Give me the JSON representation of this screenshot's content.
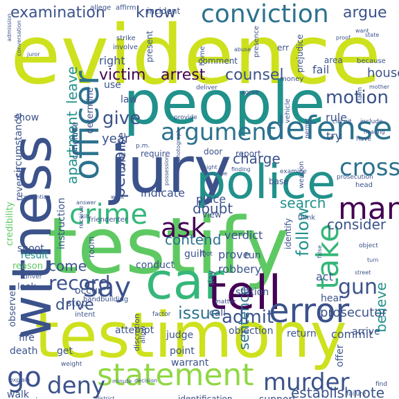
{
  "chart_data": {
    "type": "wordcloud",
    "words": [
      {
        "text": "evidence",
        "color": "#cde11d"
      },
      {
        "text": "testify",
        "color": "#5ec962"
      },
      {
        "text": "testimony",
        "color": "#cde11d"
      },
      {
        "text": "people",
        "color": "#21918c"
      },
      {
        "text": "jury",
        "color": "#3b528b"
      },
      {
        "text": "witness",
        "color": "#3b528b"
      },
      {
        "text": "police",
        "color": "#21918c"
      },
      {
        "text": "car",
        "color": "#35b779"
      },
      {
        "text": "tell",
        "color": "#440154"
      },
      {
        "text": "conviction",
        "color": "#2c728e"
      },
      {
        "text": "defense",
        "color": "#2c728e"
      },
      {
        "text": "officer",
        "color": "#2c728e"
      },
      {
        "text": "error",
        "color": "#3b528b"
      },
      {
        "text": "statement",
        "color": "#90d743"
      },
      {
        "text": "argument",
        "color": "#2c728e"
      },
      {
        "text": "crime",
        "color": "#35b779"
      },
      {
        "text": "man",
        "color": "#440154"
      },
      {
        "text": "say",
        "color": "#3b528b"
      },
      {
        "text": "take",
        "color": "#35b779"
      },
      {
        "text": "deny",
        "color": "#3b528b"
      },
      {
        "text": "murder",
        "color": "#3b528b"
      },
      {
        "text": "go",
        "color": "#3b528b"
      },
      {
        "text": "ask",
        "color": "#440154"
      },
      {
        "text": "cross",
        "color": "#2c728e"
      },
      {
        "text": "examination",
        "color": "#3b528b"
      },
      {
        "text": "know",
        "color": "#3b528b"
      },
      {
        "text": "argue",
        "color": "#3b528b"
      },
      {
        "text": "victim",
        "color": "#440154"
      },
      {
        "text": "arrest",
        "color": "#440154"
      },
      {
        "text": "counsel",
        "color": "#3b528b"
      },
      {
        "text": "motion",
        "color": "#3b528b"
      },
      {
        "text": "record",
        "color": "#3b528b"
      },
      {
        "text": "issue",
        "color": "#2c728e"
      },
      {
        "text": "admit",
        "color": "#3b528b"
      },
      {
        "text": "gun",
        "color": "#3b528b"
      },
      {
        "text": "drive",
        "color": "#3b528b"
      },
      {
        "text": "person",
        "color": "#3b528b"
      },
      {
        "text": "apartment",
        "color": "#21918c"
      },
      {
        "text": "leave",
        "color": "#21918c"
      },
      {
        "text": "give",
        "color": "#3b528b"
      },
      {
        "text": "charge",
        "color": "#3b528b"
      },
      {
        "text": "search",
        "color": "#21918c"
      },
      {
        "text": "doubt",
        "color": "#3b528b"
      },
      {
        "text": "contend",
        "color": "#2c728e"
      },
      {
        "text": "consider",
        "color": "#3b528b"
      },
      {
        "text": "follow",
        "color": "#21918c"
      },
      {
        "text": "sentence",
        "color": "#2c728e"
      },
      {
        "text": "believe",
        "color": "#21918c"
      },
      {
        "text": "establish",
        "color": "#3b528b"
      },
      {
        "text": "note",
        "color": "#3b528b"
      },
      {
        "text": "prosecutor",
        "color": "#3b528b"
      },
      {
        "text": "come",
        "color": "#3b528b"
      },
      {
        "text": "year",
        "color": "#3b528b"
      },
      {
        "text": "verdict",
        "color": "#3b528b"
      },
      {
        "text": "prove",
        "color": "#3b528b"
      },
      {
        "text": "robbery",
        "color": "#3b528b"
      },
      {
        "text": "place",
        "color": "#3b528b"
      },
      {
        "text": "indicate",
        "color": "#3b528b"
      },
      {
        "text": "offense",
        "color": "#3b528b"
      },
      {
        "text": "act",
        "color": "#3b528b"
      },
      {
        "text": "fail",
        "color": "#3b528b"
      },
      {
        "text": "house",
        "color": "#3b528b"
      },
      {
        "text": "rule",
        "color": "#3b528b"
      },
      {
        "text": "try",
        "color": "#3b528b"
      },
      {
        "text": "right",
        "color": "#3b528b"
      },
      {
        "text": "use",
        "color": "#3b528b"
      },
      {
        "text": "result",
        "color": "#21918c"
      },
      {
        "text": "show",
        "color": "#3b528b"
      },
      {
        "text": "law",
        "color": "#3b528b"
      },
      {
        "text": "determine",
        "color": "#3b528b"
      },
      {
        "text": "instruction",
        "color": "#3b528b"
      },
      {
        "text": "circumstance",
        "color": "#3b528b"
      },
      {
        "text": "conclude",
        "color": "#3b528b"
      },
      {
        "text": "reverse",
        "color": "#3b528b"
      },
      {
        "text": "credibility",
        "color": "#5ec962"
      },
      {
        "text": "shoot",
        "color": "#3b528b"
      },
      {
        "text": "reason",
        "color": "#5ec962"
      },
      {
        "text": "look",
        "color": "#3b528b"
      },
      {
        "text": "observe",
        "color": "#3b528b"
      },
      {
        "text": "fire",
        "color": "#3b528b"
      },
      {
        "text": "death",
        "color": "#3b528b"
      },
      {
        "text": "walk",
        "color": "#3b528b"
      },
      {
        "text": "review",
        "color": "#3b528b"
      },
      {
        "text": "conduct",
        "color": "#3b528b"
      },
      {
        "text": "guilt",
        "color": "#3b528b"
      },
      {
        "text": "run",
        "color": "#3b528b"
      },
      {
        "text": "room",
        "color": "#3b528b"
      },
      {
        "text": "occur",
        "color": "#3b528b"
      },
      {
        "text": "stop",
        "color": "#3b528b"
      },
      {
        "text": "attempt",
        "color": "#3b528b"
      },
      {
        "text": "judge",
        "color": "#3b528b"
      },
      {
        "text": "call",
        "color": "#3b528b"
      },
      {
        "text": "day",
        "color": "#3b528b"
      },
      {
        "text": "station",
        "color": "#3b528b"
      },
      {
        "text": "objection",
        "color": "#3b528b"
      },
      {
        "text": "return",
        "color": "#3b528b"
      },
      {
        "text": "commit",
        "color": "#3b528b"
      },
      {
        "text": "hear",
        "color": "#3b528b"
      },
      {
        "text": "arrive",
        "color": "#3b528b"
      },
      {
        "text": "point",
        "color": "#3b528b"
      },
      {
        "text": "warrant",
        "color": "#3b528b"
      },
      {
        "text": "get",
        "color": "#3b528b"
      },
      {
        "text": "offer",
        "color": "#3b528b"
      },
      {
        "text": "support",
        "color": "#3b528b"
      },
      {
        "text": "identification",
        "color": "#3b528b"
      },
      {
        "text": "concern",
        "color": "#3b528b"
      },
      {
        "text": "stand",
        "color": "#3b528b"
      },
      {
        "text": "identify",
        "color": "#3b528b"
      },
      {
        "text": "comment",
        "color": "#3b528b"
      },
      {
        "text": "present",
        "color": "#3b528b"
      },
      {
        "text": "door",
        "color": "#3b528b"
      },
      {
        "text": "report",
        "color": "#3b528b"
      },
      {
        "text": "require",
        "color": "#3b528b"
      },
      {
        "text": "base",
        "color": "#3b528b"
      },
      {
        "text": "view",
        "color": "#3b528b"
      },
      {
        "text": "incident",
        "color": "#3b528b"
      },
      {
        "text": "home",
        "color": "#3b528b"
      },
      {
        "text": "area",
        "color": "#3b528b"
      },
      {
        "text": "prejudice",
        "color": "#3b528b"
      },
      {
        "text": "because",
        "color": "#3b528b"
      },
      {
        "text": "provide",
        "color": "#3b528b"
      },
      {
        "text": "prosecution",
        "color": "#3b528b"
      },
      {
        "text": "mother",
        "color": "#3b528b"
      },
      {
        "text": "discretion",
        "color": "#3b528b"
      },
      {
        "text": "allow",
        "color": "#3b528b"
      },
      {
        "text": "deliver",
        "color": "#3b528b"
      },
      {
        "text": "involve",
        "color": "#3b528b"
      },
      {
        "text": "strike",
        "color": "#3b528b"
      },
      {
        "text": "affirm",
        "color": "#3b528b"
      },
      {
        "text": "allege",
        "color": "#3b528b"
      },
      {
        "text": "admission",
        "color": "#3b528b"
      },
      {
        "text": "weapon",
        "color": "#3b528b"
      },
      {
        "text": "vehicle",
        "color": "#3b528b"
      },
      {
        "text": "handbuilding",
        "color": "#3b528b"
      },
      {
        "text": "friendenter",
        "color": "#3b528b"
      },
      {
        "text": "factor",
        "color": "#3b528b"
      },
      {
        "text": "driver",
        "color": "#3b528b"
      },
      {
        "text": "object",
        "color": "#3b528b"
      },
      {
        "text": "explain",
        "color": "#3b528b"
      },
      {
        "text": "weight",
        "color": "#3b528b"
      },
      {
        "text": "minute",
        "color": "#3b528b"
      },
      {
        "text": "decision",
        "color": "#3b528b"
      },
      {
        "text": "contention",
        "color": "#3b528b"
      },
      {
        "text": "answer",
        "color": "#3b528b"
      },
      {
        "text": "work",
        "color": "#3b528b"
      },
      {
        "text": "kill",
        "color": "#3b528b"
      },
      {
        "text": "head",
        "color": "#3b528b"
      },
      {
        "text": "think",
        "color": "#3b528b"
      },
      {
        "text": "circuit",
        "color": "#3b528b"
      },
      {
        "text": "claim",
        "color": "#3b528b"
      },
      {
        "text": "hearing",
        "color": "#3b528b"
      },
      {
        "text": "want",
        "color": "#3b528b"
      },
      {
        "text": "proof",
        "color": "#3b528b"
      },
      {
        "text": "abuse",
        "color": "#3b528b"
      },
      {
        "text": "presence",
        "color": "#3b528b"
      },
      {
        "text": "money",
        "color": "#3b528b"
      },
      {
        "text": "agree",
        "color": "#3b528b"
      },
      {
        "text": "err",
        "color": "#3b528b"
      },
      {
        "text": "permit",
        "color": "#3b528b"
      },
      {
        "text": "examine",
        "color": "#3b528b"
      },
      {
        "text": "photograph",
        "color": "#3b528b"
      },
      {
        "text": "describe",
        "color": "#3b528b"
      },
      {
        "text": "finding",
        "color": "#3b528b"
      },
      {
        "text": "night",
        "color": "#3b528b"
      },
      {
        "text": "include",
        "color": "#3b528b"
      },
      {
        "text": "possession",
        "color": "#3b528b"
      },
      {
        "text": "p.m.",
        "color": "#3b528b"
      },
      {
        "text": "foot",
        "color": "#3b528b"
      },
      {
        "text": "matter",
        "color": "#3b528b"
      },
      {
        "text": "receive",
        "color": "#3b528b"
      },
      {
        "text": "intent",
        "color": "#3b528b"
      },
      {
        "text": "turn",
        "color": "#3b528b"
      },
      {
        "text": "failure",
        "color": "#3b528b"
      },
      {
        "text": "juror",
        "color": "#3b528b"
      },
      {
        "text": "conversation",
        "color": "#3b528b"
      },
      {
        "text": "false",
        "color": "#3b528b"
      },
      {
        "text": "district",
        "color": "#3b528b"
      },
      {
        "text": "state",
        "color": "#3b528b"
      },
      {
        "text": "have",
        "color": "#3b528b"
      },
      {
        "text": "street",
        "color": "#3b528b"
      },
      {
        "text": "find",
        "color": "#3b528b"
      }
    ]
  }
}
